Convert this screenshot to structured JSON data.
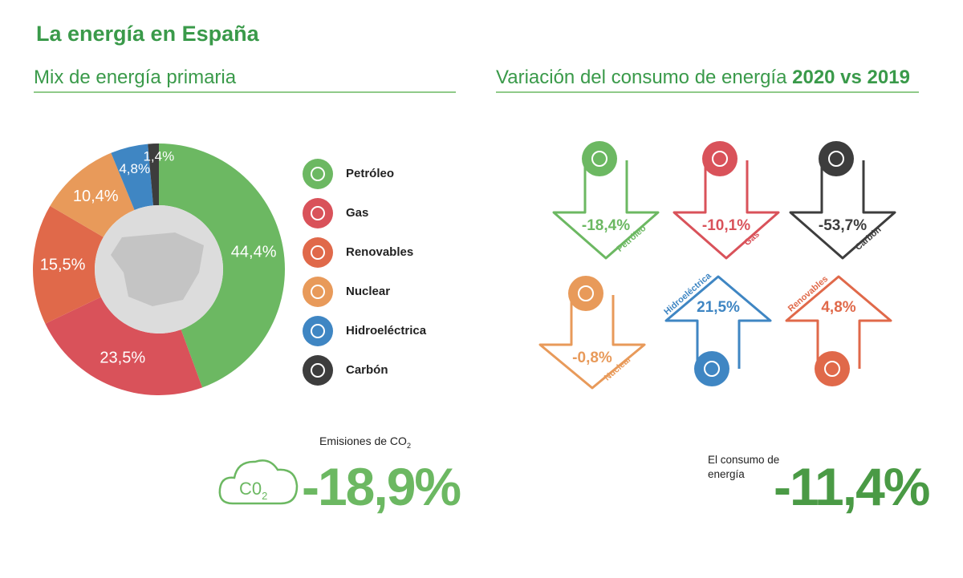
{
  "title": "La energía en España",
  "chart_data": {
    "type": "pie",
    "title": "Mix de energía primaria",
    "categories": [
      "Petróleo",
      "Gas",
      "Renovables",
      "Nuclear",
      "Hidroeléctrica",
      "Carbón"
    ],
    "values": [
      44.4,
      23.5,
      15.5,
      10.4,
      4.8,
      1.4
    ],
    "value_labels": [
      "44,4%",
      "23,5%",
      "15,5%",
      "10,4%",
      "4,8%",
      "1,4%"
    ],
    "colors": [
      "#6cb862",
      "#d9525a",
      "#e0694a",
      "#e89a5a",
      "#3f86c3",
      "#3d3d3d"
    ]
  },
  "variation": {
    "title": "Variación del consumo de energía",
    "period": "2020 vs 2019",
    "items": [
      {
        "name": "Petróleo",
        "value": -18.4,
        "label": "-18,4%"
      },
      {
        "name": "Gas",
        "value": -10.1,
        "label": "-10,1%"
      },
      {
        "name": "Carbón",
        "value": -53.7,
        "label": "-53,7%"
      },
      {
        "name": "Nuclear",
        "value": -0.8,
        "label": "-0,8%"
      },
      {
        "name": "Hidroeléctrica",
        "value": 21.5,
        "label": "21,5%"
      },
      {
        "name": "Renovables",
        "value": 4.8,
        "label": "4,8%"
      }
    ]
  },
  "emissions": {
    "label": "Emisiones de CO",
    "label_subscript": "2",
    "value": "-18,9%",
    "icon": "C0",
    "icon_subscript": "2"
  },
  "consumption": {
    "label": [
      "El consumo de",
      "energía"
    ],
    "value": "-11,4%"
  }
}
